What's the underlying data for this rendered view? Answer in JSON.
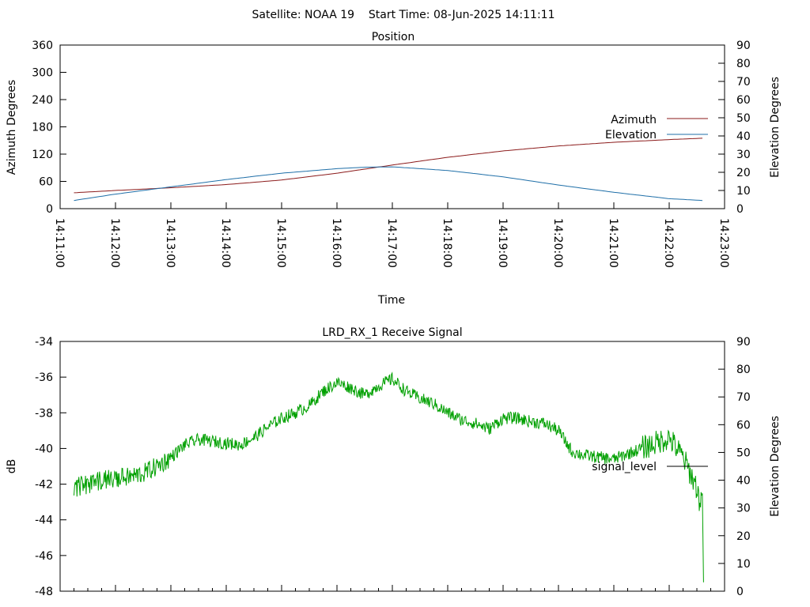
{
  "header": {
    "title": "Satellite: NOAA 19    Start Time: 08-Jun-2025 14:11:11"
  },
  "colors": {
    "azimuth": "#8b1a1a",
    "elevation": "#1f6fa8",
    "signal": "#00a000",
    "axis": "#000000"
  },
  "chart_data": [
    {
      "type": "line",
      "title": "Position",
      "xlabel": "Time",
      "ylabel": "Azimuth Degrees",
      "y2label": "Elevation Degrees",
      "ylim": [
        0,
        360
      ],
      "y2lim": [
        0,
        90
      ],
      "yticks": [
        "0",
        "60",
        "120",
        "180",
        "240",
        "300",
        "360"
      ],
      "y2ticks": [
        "0",
        "10",
        "20",
        "30",
        "40",
        "50",
        "60",
        "70",
        "80",
        "90"
      ],
      "xticks": [
        "14:11:00",
        "14:12:00",
        "14:13:00",
        "14:14:00",
        "14:15:00",
        "14:16:00",
        "14:17:00",
        "14:18:00",
        "14:19:00",
        "14:20:00",
        "14:21:00",
        "14:22:00",
        "14:23:00"
      ],
      "xrange_minutes": [
        0,
        12
      ],
      "legend_position": "right",
      "series": [
        {
          "name": "Azimuth",
          "axis": "y",
          "x_minutes": [
            0.25,
            1,
            2,
            3,
            4,
            5,
            6,
            7,
            8,
            9,
            10,
            11,
            11.6
          ],
          "values": [
            35,
            40,
            46,
            53,
            63,
            78,
            96,
            113,
            127,
            138,
            146,
            152,
            155
          ]
        },
        {
          "name": "Elevation",
          "axis": "y2",
          "x_minutes": [
            0.25,
            1,
            2,
            3,
            4,
            5,
            5.5,
            6,
            7,
            8,
            9,
            10,
            11,
            11.6
          ],
          "values": [
            4.5,
            8,
            12,
            16,
            19.5,
            22,
            22.8,
            23,
            21,
            17.5,
            13,
            9,
            5.5,
            4.5
          ]
        }
      ]
    },
    {
      "type": "line",
      "title": "LRD_RX_1 Receive Signal",
      "ylabel": "dB",
      "y2label": "Elevation Degrees",
      "ylim": [
        -48,
        -34
      ],
      "y2lim": [
        0,
        90
      ],
      "yticks": [
        "-48",
        "-46",
        "-44",
        "-42",
        "-40",
        "-38",
        "-36",
        "-34"
      ],
      "y2ticks": [
        "0",
        "10",
        "20",
        "30",
        "40",
        "50",
        "60",
        "70",
        "80",
        "90"
      ],
      "xrange_minutes": [
        0,
        12
      ],
      "legend_position": "right",
      "series": [
        {
          "name": "signal_level",
          "axis": "y",
          "x_minutes": [
            0.25,
            0.5,
            0.75,
            1,
            1.25,
            1.5,
            1.75,
            2,
            2.25,
            2.5,
            2.75,
            3,
            3.25,
            3.5,
            3.75,
            4,
            4.25,
            4.5,
            4.75,
            5,
            5.25,
            5.5,
            5.75,
            6,
            6.25,
            6.5,
            6.75,
            7,
            7.25,
            7.5,
            7.75,
            8,
            8.25,
            8.5,
            8.75,
            9,
            9.25,
            9.5,
            9.75,
            10,
            10.25,
            10.5,
            10.75,
            11,
            11.25,
            11.5,
            11.55,
            11.6,
            11.62
          ],
          "values": [
            -42.2,
            -42.0,
            -41.8,
            -41.7,
            -41.6,
            -41.4,
            -41.0,
            -40.5,
            -39.8,
            -39.5,
            -39.6,
            -39.7,
            -39.8,
            -39.4,
            -38.8,
            -38.3,
            -38.0,
            -37.6,
            -36.8,
            -36.3,
            -36.6,
            -37.0,
            -36.5,
            -36.1,
            -36.8,
            -37.2,
            -37.5,
            -38.0,
            -38.4,
            -38.6,
            -38.9,
            -38.3,
            -38.3,
            -38.5,
            -38.6,
            -39.0,
            -40.2,
            -40.4,
            -40.5,
            -40.6,
            -40.3,
            -40.0,
            -39.7,
            -39.4,
            -40.5,
            -42.2,
            -43.0,
            -42.5,
            -47.5
          ]
        }
      ]
    }
  ]
}
